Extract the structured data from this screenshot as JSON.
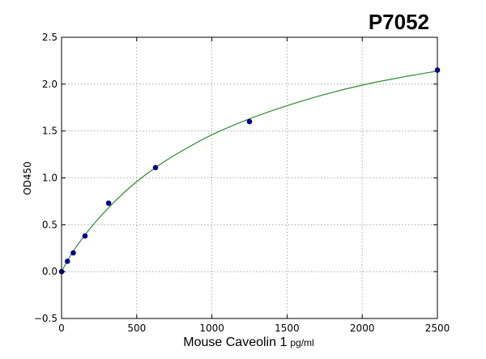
{
  "chart_data": {
    "type": "scatter",
    "title": "P7052",
    "xlabel": "Mouse Caveolin 1",
    "xlabel_unit": "pg/ml",
    "ylabel": "OD450",
    "xlim": [
      0,
      2500
    ],
    "ylim": [
      -0.5,
      2.5
    ],
    "x_ticks": [
      0,
      500,
      1000,
      1500,
      2000,
      2500
    ],
    "y_ticks": [
      -0.5,
      0.0,
      0.5,
      1.0,
      1.5,
      2.0,
      2.5
    ],
    "y_tick_labels": [
      "−0.5",
      "0.0",
      "0.5",
      "1.0",
      "1.5",
      "2.0",
      "2.5"
    ],
    "grid": true,
    "series": [
      {
        "kind": "points",
        "color": "#00008b",
        "x": [
          0,
          39,
          78,
          156,
          313,
          625,
          1250,
          2500
        ],
        "y": [
          0.0,
          0.11,
          0.2,
          0.38,
          0.73,
          1.11,
          1.6,
          2.15
        ]
      },
      {
        "kind": "fit-curve",
        "color": "#2e8b2e",
        "x": [
          0,
          25,
          50,
          100,
          200,
          300,
          400,
          500,
          625,
          750,
          1000,
          1250,
          1500,
          1750,
          2000,
          2250,
          2500
        ],
        "y": [
          0.0,
          0.075,
          0.145,
          0.27,
          0.48,
          0.66,
          0.82,
          0.96,
          1.11,
          1.24,
          1.46,
          1.63,
          1.77,
          1.89,
          1.99,
          2.07,
          2.14
        ]
      }
    ]
  }
}
